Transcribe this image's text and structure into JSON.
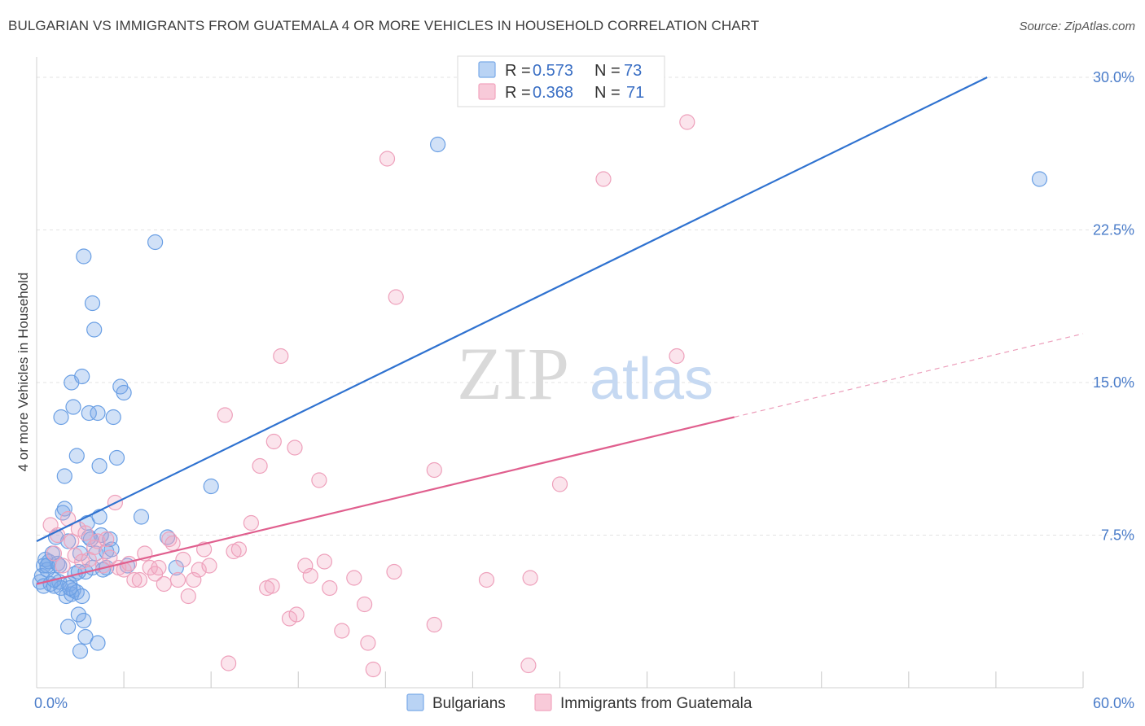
{
  "title": "BULGARIAN VS IMMIGRANTS FROM GUATEMALA 4 OR MORE VEHICLES IN HOUSEHOLD CORRELATION CHART",
  "source": "Source: ZipAtlas.com",
  "watermark": {
    "zip": "ZIP",
    "atlas": "atlas"
  },
  "chart_data": {
    "type": "scatter",
    "title": "BULGARIAN VS IMMIGRANTS FROM GUATEMALA 4 OR MORE VEHICLES IN HOUSEHOLD CORRELATION CHART",
    "xlabel": "",
    "ylabel": "4 or more Vehicles in Household",
    "xlim": [
      0,
      60
    ],
    "ylim": [
      0,
      31
    ],
    "x_tick_labels": [
      {
        "value": 0,
        "label": "0.0%"
      },
      {
        "value": 60,
        "label": "60.0%"
      }
    ],
    "y_tick_labels": [
      {
        "value": 7.5,
        "label": "7.5%"
      },
      {
        "value": 15,
        "label": "15.0%"
      },
      {
        "value": 22.5,
        "label": "22.5%"
      },
      {
        "value": 30,
        "label": "30.0%"
      }
    ],
    "grid": true,
    "legend_position": "top-center",
    "stats_legend": [
      {
        "r_label": "R = ",
        "r_value": "0.573",
        "n_label": "N = ",
        "n_value": "73",
        "color": "#7aaae8"
      },
      {
        "r_label": "R = ",
        "r_value": "0.368",
        "n_label": "N = ",
        "n_value": "71",
        "color": "#f2a5bf"
      }
    ],
    "series": [
      {
        "name": "Bulgarians",
        "color": "#7aaae8",
        "line_color": "#2f72d0",
        "trend": {
          "x0": 0,
          "y0": 7.2,
          "x1": 54.5,
          "y1": 30.0
        },
        "points": [
          [
            0.2,
            5.2
          ],
          [
            0.3,
            5.5
          ],
          [
            0.4,
            6.0
          ],
          [
            0.5,
            6.3
          ],
          [
            0.6,
            5.8
          ],
          [
            0.4,
            5.0
          ],
          [
            0.7,
            6.2
          ],
          [
            0.8,
            5.1
          ],
          [
            0.9,
            6.6
          ],
          [
            1.0,
            5.0
          ],
          [
            1.1,
            7.4
          ],
          [
            1.2,
            6.1
          ],
          [
            1.3,
            5.2
          ],
          [
            1.4,
            4.9
          ],
          [
            1.5,
            8.6
          ],
          [
            1.6,
            8.8
          ],
          [
            1.7,
            4.5
          ],
          [
            1.8,
            7.2
          ],
          [
            1.9,
            5.1
          ],
          [
            2.0,
            4.6
          ],
          [
            2.1,
            4.8
          ],
          [
            2.2,
            5.6
          ],
          [
            2.3,
            4.7
          ],
          [
            2.4,
            3.6
          ],
          [
            2.5,
            6.6
          ],
          [
            2.6,
            4.5
          ],
          [
            2.7,
            3.3
          ],
          [
            2.8,
            5.7
          ],
          [
            2.9,
            8.1
          ],
          [
            3.0,
            7.4
          ],
          [
            3.2,
            5.9
          ],
          [
            3.4,
            6.6
          ],
          [
            3.6,
            8.4
          ],
          [
            3.8,
            5.8
          ],
          [
            4.0,
            6.7
          ],
          [
            4.2,
            7.3
          ],
          [
            0.6,
            6.0
          ],
          [
            1.0,
            5.3
          ],
          [
            1.3,
            6.0
          ],
          [
            2.4,
            5.7
          ],
          [
            1.4,
            13.3
          ],
          [
            1.6,
            10.4
          ],
          [
            1.8,
            3.0
          ],
          [
            2.0,
            15.0
          ],
          [
            2.1,
            13.8
          ],
          [
            2.3,
            11.4
          ],
          [
            2.5,
            1.8
          ],
          [
            2.6,
            15.3
          ],
          [
            2.7,
            21.2
          ],
          [
            2.8,
            2.5
          ],
          [
            3.0,
            13.5
          ],
          [
            3.2,
            18.9
          ],
          [
            3.3,
            17.6
          ],
          [
            3.5,
            13.5
          ],
          [
            3.6,
            10.9
          ],
          [
            3.5,
            2.2
          ],
          [
            3.7,
            7.5
          ],
          [
            4.0,
            5.9
          ],
          [
            4.3,
            6.8
          ],
          [
            4.4,
            13.3
          ],
          [
            4.6,
            11.3
          ],
          [
            4.8,
            14.8
          ],
          [
            5.0,
            14.5
          ],
          [
            5.2,
            6.0
          ],
          [
            6.0,
            8.4
          ],
          [
            6.8,
            21.9
          ],
          [
            7.5,
            7.4
          ],
          [
            8.0,
            5.9
          ],
          [
            10.0,
            9.9
          ],
          [
            23.0,
            26.7
          ],
          [
            57.5,
            25.0
          ],
          [
            3.1,
            7.3
          ],
          [
            1.9,
            4.9
          ]
        ]
      },
      {
        "name": "Immigrants from Guatemala",
        "color": "#f2a5bf",
        "line_color": "#e05f8e",
        "trend": {
          "x0": 0,
          "y0": 5.1,
          "x1": 40.0,
          "y1": 13.3
        },
        "trend_dashed": {
          "x0": 40.0,
          "y0": 13.3,
          "x1": 60.0,
          "y1": 17.4
        },
        "points": [
          [
            0.8,
            8.0
          ],
          [
            1.0,
            6.6
          ],
          [
            1.2,
            7.5
          ],
          [
            1.5,
            6.0
          ],
          [
            1.8,
            8.3
          ],
          [
            2.0,
            7.2
          ],
          [
            2.2,
            6.5
          ],
          [
            2.4,
            7.8
          ],
          [
            2.6,
            6.2
          ],
          [
            2.8,
            7.6
          ],
          [
            3.0,
            6.3
          ],
          [
            3.3,
            6.9
          ],
          [
            3.5,
            7.2
          ],
          [
            3.8,
            6.0
          ],
          [
            4.0,
            7.3
          ],
          [
            4.2,
            6.4
          ],
          [
            4.5,
            9.1
          ],
          [
            4.7,
            5.9
          ],
          [
            5.0,
            5.8
          ],
          [
            5.3,
            6.1
          ],
          [
            5.6,
            5.3
          ],
          [
            5.9,
            5.3
          ],
          [
            6.2,
            6.6
          ],
          [
            6.5,
            5.9
          ],
          [
            6.8,
            5.6
          ],
          [
            7.0,
            5.9
          ],
          [
            7.3,
            5.1
          ],
          [
            7.6,
            7.3
          ],
          [
            7.8,
            7.1
          ],
          [
            8.1,
            5.3
          ],
          [
            8.4,
            6.3
          ],
          [
            8.7,
            4.5
          ],
          [
            9.0,
            5.3
          ],
          [
            9.3,
            5.8
          ],
          [
            9.6,
            6.8
          ],
          [
            9.9,
            6.0
          ],
          [
            11.3,
            6.7
          ],
          [
            11.6,
            6.8
          ],
          [
            12.3,
            8.1
          ],
          [
            13.2,
            4.9
          ],
          [
            13.5,
            5.0
          ],
          [
            14.5,
            3.4
          ],
          [
            14.9,
            3.6
          ],
          [
            15.4,
            6.0
          ],
          [
            15.7,
            5.5
          ],
          [
            16.5,
            6.2
          ],
          [
            16.8,
            4.9
          ],
          [
            17.5,
            2.8
          ],
          [
            18.2,
            5.4
          ],
          [
            18.8,
            4.1
          ],
          [
            19.0,
            2.2
          ],
          [
            19.3,
            0.9
          ],
          [
            20.5,
            5.7
          ],
          [
            22.8,
            3.1
          ],
          [
            25.8,
            5.3
          ],
          [
            28.3,
            5.4
          ],
          [
            11.0,
            1.2
          ],
          [
            28.2,
            1.1
          ],
          [
            10.8,
            13.4
          ],
          [
            12.8,
            10.9
          ],
          [
            13.6,
            12.1
          ],
          [
            14.0,
            16.3
          ],
          [
            14.8,
            11.8
          ],
          [
            16.2,
            10.2
          ],
          [
            20.1,
            26.0
          ],
          [
            20.6,
            19.2
          ],
          [
            22.8,
            10.7
          ],
          [
            30.0,
            10.0
          ],
          [
            32.5,
            25.0
          ],
          [
            36.7,
            16.3
          ],
          [
            37.3,
            27.8
          ]
        ]
      }
    ]
  }
}
